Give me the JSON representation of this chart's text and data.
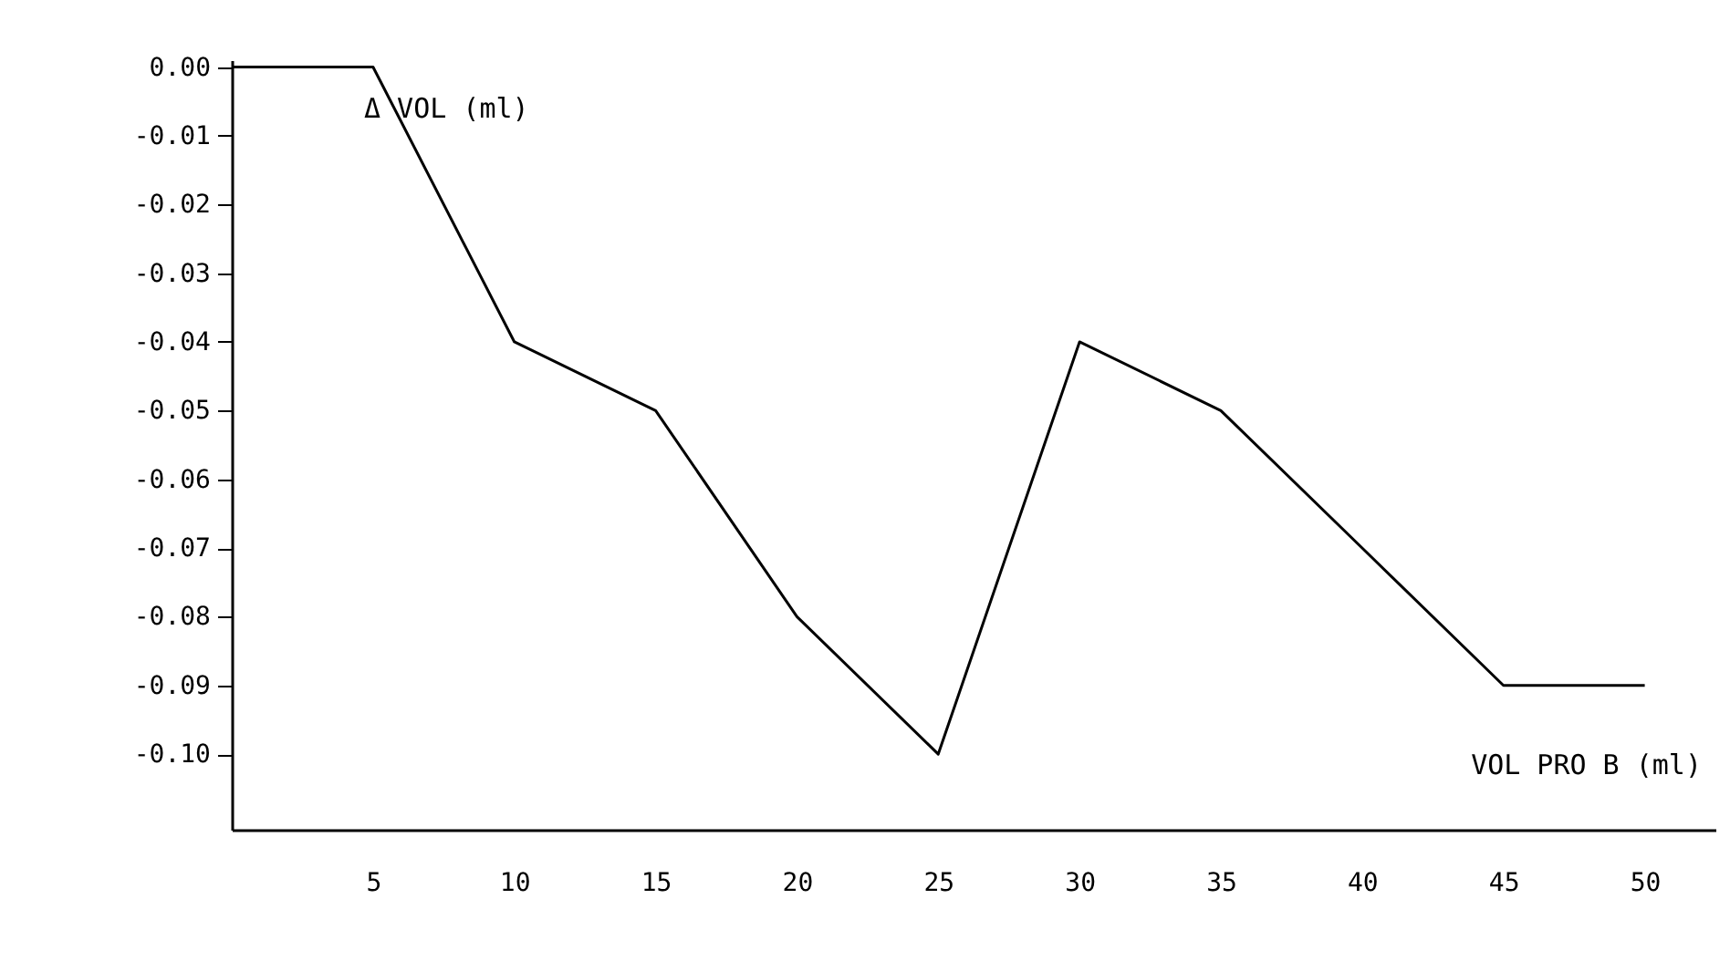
{
  "chart_data": {
    "type": "line",
    "xlabel": "VOL PRO B (ml)",
    "ylabel": "Δ VOL (ml)",
    "x": [
      0,
      5,
      10,
      15,
      20,
      25,
      30,
      35,
      40,
      45,
      50
    ],
    "values": [
      0,
      0,
      -0.04,
      -0.05,
      -0.08,
      -0.1,
      -0.04,
      -0.05,
      -0.07,
      -0.09,
      -0.09
    ],
    "color": "#000000",
    "marker": "none",
    "grid": false,
    "xlim": [
      0,
      52.5
    ],
    "ylim": [
      -0.111,
      0.001
    ],
    "xticks": [
      5,
      10,
      15,
      20,
      25,
      30,
      35,
      40,
      45,
      50
    ],
    "yticks": [
      {
        "value": 0,
        "label": "0.00"
      },
      {
        "value": -0.01,
        "label": "-0.01"
      },
      {
        "value": -0.02,
        "label": "-0.02"
      },
      {
        "value": -0.03,
        "label": "-0.03"
      },
      {
        "value": -0.04,
        "label": "-0.04"
      },
      {
        "value": -0.05,
        "label": "-0.05"
      },
      {
        "value": -0.06,
        "label": "-0.06"
      },
      {
        "value": -0.07,
        "label": "-0.07"
      },
      {
        "value": -0.08,
        "label": "-0.08"
      },
      {
        "value": -0.09,
        "label": "-0.09"
      },
      {
        "value": -0.1,
        "label": "-0.10"
      }
    ]
  }
}
